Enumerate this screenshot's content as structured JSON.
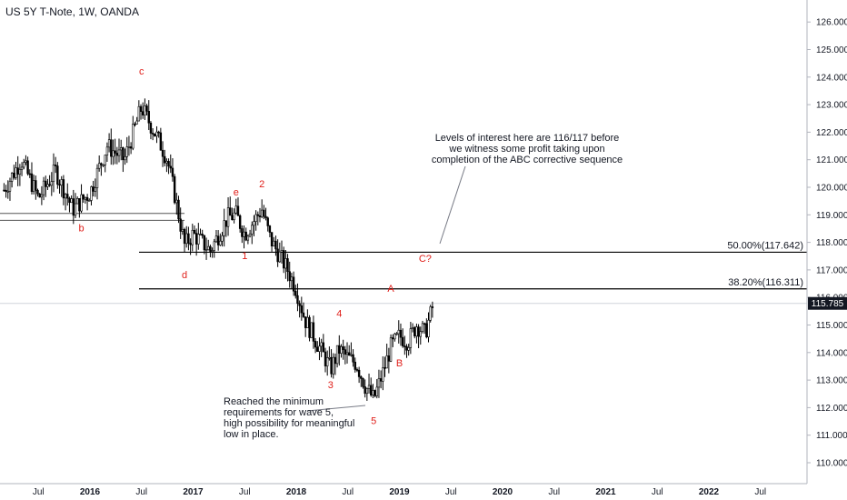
{
  "header": {
    "title": "US 5Y T-Note, 1W, OANDA"
  },
  "annotations": {
    "levels_note": "Levels of interest here are 116/117 before\nwe witness some profit taking upon\ncompletion of the ABC corrective sequence",
    "wave5_note": "Reached the minimum\nrequirements for wave 5,\nhigh possibility for meaningful\nlow in place."
  },
  "colors": {
    "candle": "#000000",
    "wave_label": "#e0201b",
    "axis_text": "#131722",
    "grid_line": "#000000",
    "price_tag_bg": "#131722"
  },
  "chart_data": {
    "type": "candlestick",
    "title": "US 5Y T-Note, 1W, OANDA",
    "ylim": [
      109.4,
      126.4
    ],
    "y_ticks": [
      "110.000",
      "111.000",
      "112.000",
      "113.000",
      "114.000",
      "115.000",
      "116.000",
      "117.000",
      "118.000",
      "119.000",
      "120.000",
      "121.000",
      "122.000",
      "123.000",
      "124.000",
      "125.000",
      "126.000"
    ],
    "x_ticks": [
      {
        "label": "Jul",
        "date": "2015-07"
      },
      {
        "label": "2016",
        "date": "2016-01"
      },
      {
        "label": "Jul",
        "date": "2016-07"
      },
      {
        "label": "2017",
        "date": "2017-01"
      },
      {
        "label": "Jul",
        "date": "2017-07"
      },
      {
        "label": "2018",
        "date": "2018-01"
      },
      {
        "label": "Jul",
        "date": "2018-07"
      },
      {
        "label": "2019",
        "date": "2019-01"
      },
      {
        "label": "Jul",
        "date": "2019-07"
      },
      {
        "label": "2020",
        "date": "2020-01"
      },
      {
        "label": "Jul",
        "date": "2020-07"
      },
      {
        "label": "2021",
        "date": "2021-01"
      },
      {
        "label": "Jul",
        "date": "2021-07"
      },
      {
        "label": "2022",
        "date": "2022-01"
      },
      {
        "label": "Jul",
        "date": "2022-07"
      }
    ],
    "price_path": [
      {
        "date": "2015-03",
        "price": 119.9
      },
      {
        "date": "2015-05",
        "price": 121.0
      },
      {
        "date": "2015-07",
        "price": 119.6
      },
      {
        "date": "2015-09",
        "price": 120.6
      },
      {
        "date": "2015-11",
        "price": 119.2
      },
      {
        "date": "2016-01",
        "price": 119.8
      },
      {
        "date": "2016-03",
        "price": 121.5
      },
      {
        "date": "2016-05",
        "price": 121.0
      },
      {
        "date": "2016-07",
        "price": 122.9
      },
      {
        "date": "2016-09",
        "price": 121.7
      },
      {
        "date": "2016-10",
        "price": 121.0
      },
      {
        "date": "2016-11",
        "price": 119.5
      },
      {
        "date": "2016-12",
        "price": 117.9
      },
      {
        "date": "2017-01",
        "price": 118.3
      },
      {
        "date": "2017-03",
        "price": 117.7
      },
      {
        "date": "2017-05",
        "price": 118.9
      },
      {
        "date": "2017-06",
        "price": 119.0
      },
      {
        "date": "2017-07",
        "price": 118.3
      },
      {
        "date": "2017-09",
        "price": 119.2
      },
      {
        "date": "2017-10",
        "price": 118.1
      },
      {
        "date": "2017-12",
        "price": 117.0
      },
      {
        "date": "2018-01",
        "price": 116.3
      },
      {
        "date": "2018-02",
        "price": 115.2
      },
      {
        "date": "2018-03",
        "price": 114.6
      },
      {
        "date": "2018-05",
        "price": 113.4
      },
      {
        "date": "2018-06",
        "price": 114.1
      },
      {
        "date": "2018-07",
        "price": 113.8
      },
      {
        "date": "2018-08",
        "price": 113.6
      },
      {
        "date": "2018-09",
        "price": 112.8
      },
      {
        "date": "2018-10",
        "price": 112.3
      },
      {
        "date": "2018-11",
        "price": 113.2
      },
      {
        "date": "2018-12",
        "price": 114.2
      },
      {
        "date": "2019-01",
        "price": 114.6
      },
      {
        "date": "2019-02",
        "price": 114.4
      },
      {
        "date": "2019-03",
        "price": 115.0
      },
      {
        "date": "2019-04",
        "price": 114.7
      },
      {
        "date": "2019-05",
        "price": 115.785
      }
    ],
    "last_price": "115.785",
    "horizontal_levels": [
      {
        "label": "50.00%(117.642)",
        "price": 117.642
      },
      {
        "label": "38.20%(116.311)",
        "price": 116.311
      }
    ],
    "support_lines": [
      {
        "price": 119.05,
        "from": "2015-01",
        "to": "2016-12"
      },
      {
        "price": 118.8,
        "from": "2015-01",
        "to": "2016-12"
      }
    ],
    "wave_labels": [
      {
        "text": "b",
        "date": "2015-12",
        "price": 118.4
      },
      {
        "text": "c",
        "date": "2016-07",
        "price": 124.1
      },
      {
        "text": "d",
        "date": "2016-12",
        "price": 116.7
      },
      {
        "text": "e",
        "date": "2017-06",
        "price": 119.7
      },
      {
        "text": "1",
        "date": "2017-07",
        "price": 117.4
      },
      {
        "text": "2",
        "date": "2017-09",
        "price": 120.0
      },
      {
        "text": "3",
        "date": "2018-05",
        "price": 112.7
      },
      {
        "text": "4",
        "date": "2018-06",
        "price": 115.3
      },
      {
        "text": "5",
        "date": "2018-10",
        "price": 111.4
      },
      {
        "text": "A",
        "date": "2018-12",
        "price": 116.2
      },
      {
        "text": "B",
        "date": "2019-01",
        "price": 113.5
      },
      {
        "text": "C?",
        "date": "2019-04",
        "price": 117.3
      }
    ]
  }
}
